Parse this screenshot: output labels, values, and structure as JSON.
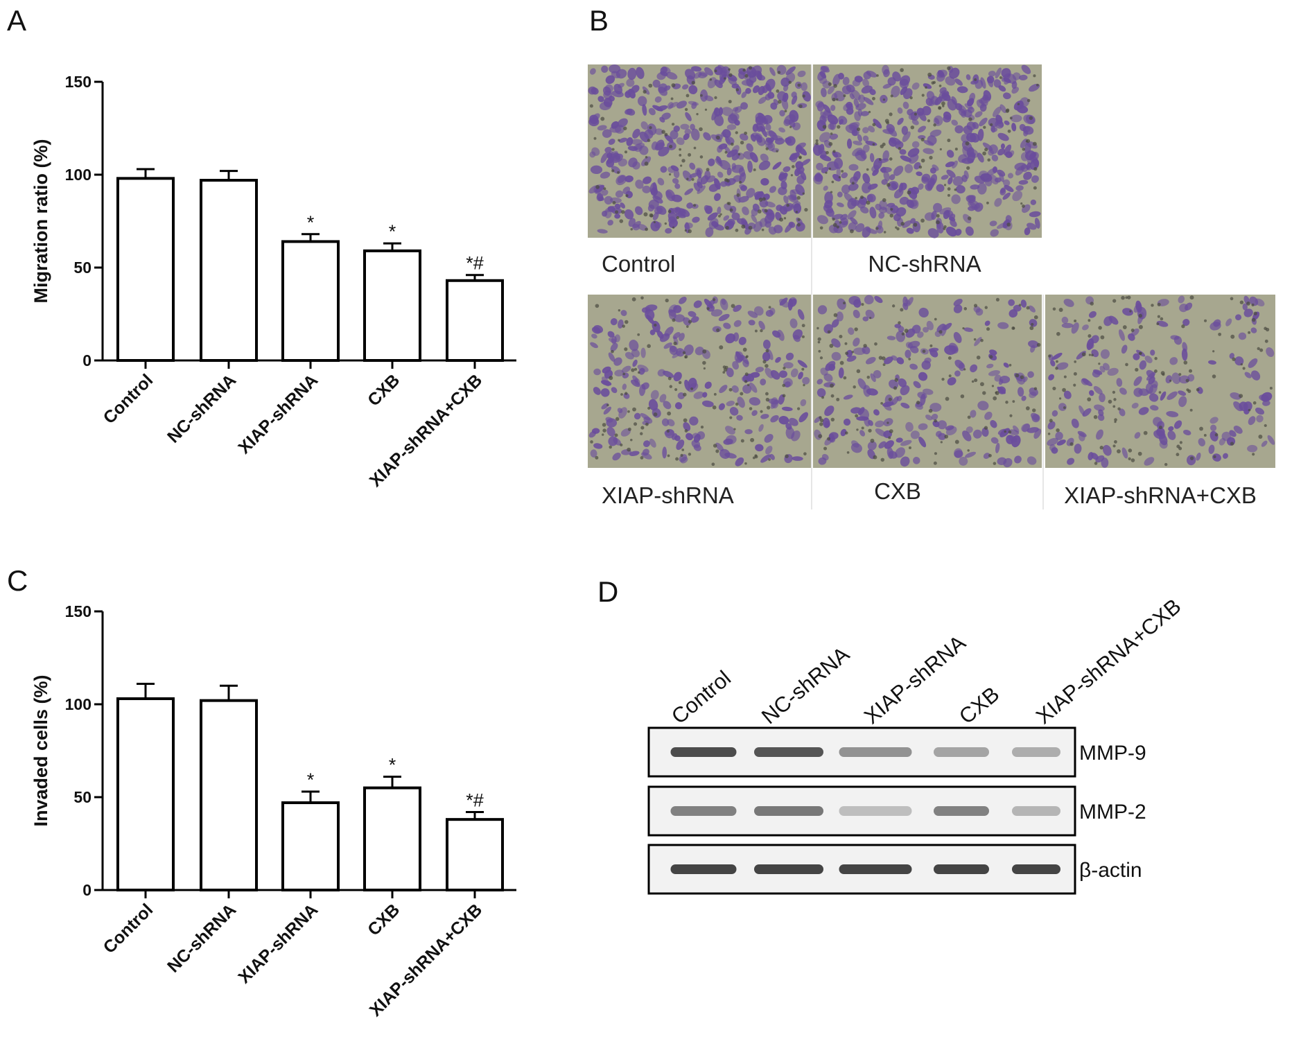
{
  "panels": {
    "a": "A",
    "b": "B",
    "c": "C",
    "d": "D"
  },
  "chart_data": [
    {
      "type": "bar",
      "panel": "A",
      "ylabel": "Migration ratio (%)",
      "xlabel": "",
      "ylim": [
        0,
        150
      ],
      "yticks": [
        "0",
        "50",
        "100",
        "150"
      ],
      "categories": [
        "Control",
        "NC-shRNA",
        "XIAP-shRNA",
        "CXB",
        "XIAP-shRNA+CXB"
      ],
      "values": [
        98,
        97,
        64,
        59,
        43
      ],
      "errors": [
        5,
        5,
        4,
        4,
        3
      ],
      "annotations": [
        "",
        "",
        "*",
        "*",
        "*#"
      ],
      "bar_fill": "#ffffff",
      "bar_stroke": "#000000"
    },
    {
      "type": "bar",
      "panel": "C",
      "ylabel": "Invaded cells (%)",
      "xlabel": "",
      "ylim": [
        0,
        150
      ],
      "yticks": [
        "0",
        "50",
        "100",
        "150"
      ],
      "categories": [
        "Control",
        "NC-shRNA",
        "XIAP-shRNA",
        "CXB",
        "XIAP-shRNA+CXB"
      ],
      "values": [
        103,
        102,
        47,
        55,
        38
      ],
      "errors": [
        8,
        8,
        6,
        6,
        4
      ],
      "annotations": [
        "",
        "",
        "*",
        "*",
        "*#"
      ],
      "bar_fill": "#ffffff",
      "bar_stroke": "#000000"
    }
  ],
  "micrographs": {
    "labels": [
      "Control",
      "NC-shRNA",
      "XIAP-shRNA",
      "CXB",
      "XIAP-shRNA+CXB"
    ],
    "background_color": "#a7a78f",
    "cell_color": "#6a4d9c",
    "density": [
      1.0,
      1.0,
      0.55,
      0.5,
      0.4
    ]
  },
  "western_blot": {
    "lanes": [
      "Control",
      "NC-shRNA",
      "XIAP-shRNA",
      "CXB",
      "XIAP-shRNA+CXB"
    ],
    "rows": [
      {
        "label": "MMP-9",
        "intensity": [
          0.85,
          0.8,
          0.45,
          0.35,
          0.3
        ]
      },
      {
        "label": "MMP-2",
        "intensity": [
          0.55,
          0.6,
          0.2,
          0.55,
          0.25
        ]
      },
      {
        "label": "β-actin",
        "intensity": [
          0.9,
          0.9,
          0.9,
          0.9,
          0.9
        ]
      }
    ]
  }
}
